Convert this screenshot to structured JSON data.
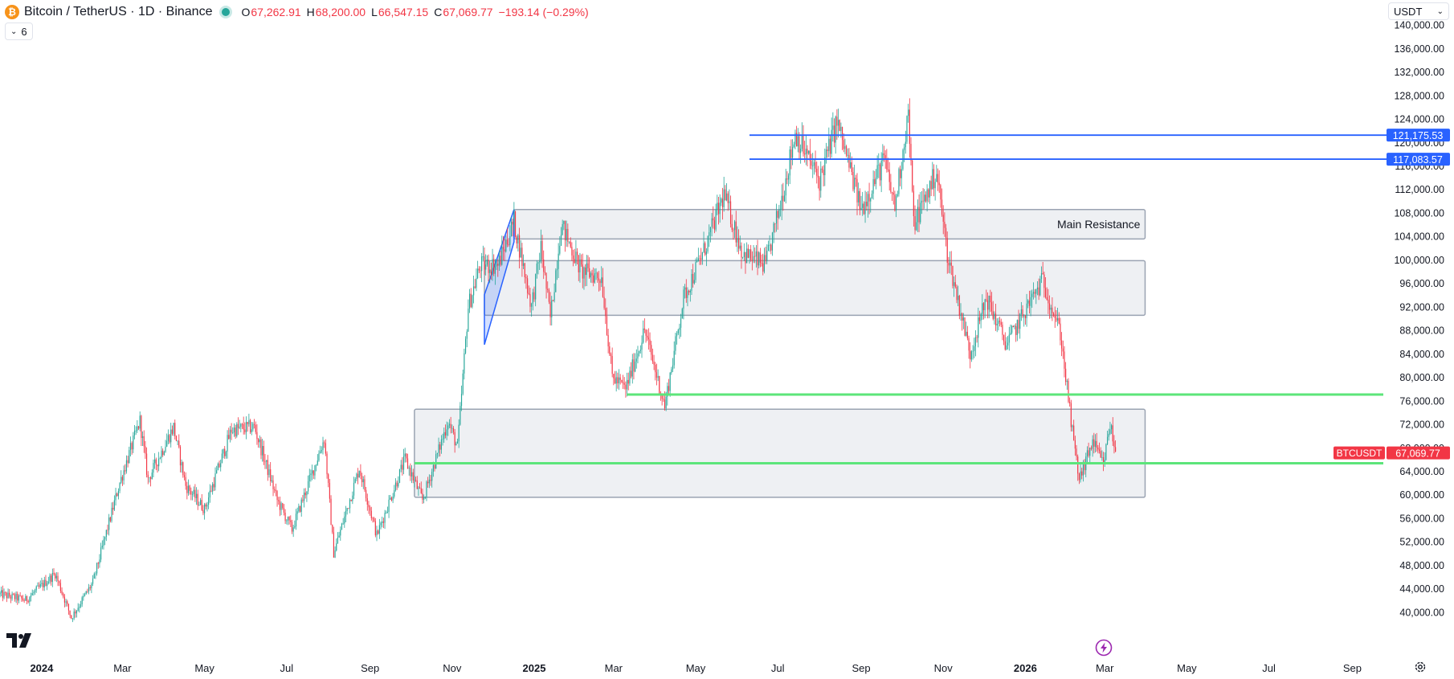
{
  "header": {
    "symbol_title": "Bitcoin / TetherUS · 1D · Binance",
    "ohlc": {
      "o": "67,262.91",
      "h": "68,200.00",
      "l": "66,547.15",
      "c": "67,069.77"
    },
    "change": "−193.14 (−0.29%)",
    "indicator_count": "6",
    "currency": "USDT"
  },
  "icons": {
    "coin": "bitcoin-icon",
    "market_status": "market-open-dot",
    "collapse": "chevron-down-icon",
    "logo": "tradingview-logo",
    "replay": "replay-lightning-icon",
    "settings": "gear-icon"
  },
  "colors": {
    "up": "#26a69a",
    "down": "#f23645",
    "hline": "#2962ff",
    "support": "#5ce57a",
    "zone_fill": "#eef0f3",
    "zone_stroke": "#9aa3b2"
  },
  "chart_data": {
    "type": "candlestick",
    "symbol": "BTCUSDT",
    "interval": "1D",
    "exchange": "Binance",
    "x_range": [
      "2023-12-01",
      "2026-09-30"
    ],
    "y_range": [
      38000,
      142000
    ],
    "y_ticks": [
      40000,
      44000,
      48000,
      52000,
      56000,
      60000,
      64000,
      68000,
      72000,
      76000,
      80000,
      84000,
      88000,
      92000,
      96000,
      100000,
      104000,
      108000,
      112000,
      116000,
      120000,
      124000,
      128000,
      132000,
      136000,
      140000
    ],
    "y_tick_labels": [
      "40,000.00",
      "44,000.00",
      "48,000.00",
      "52,000.00",
      "56,000.00",
      "60,000.00",
      "64,000.00",
      "68,000.00",
      "72,000.00",
      "76,000.00",
      "80,000.00",
      "84,000.00",
      "88,000.00",
      "92,000.00",
      "96,000.00",
      "100,000.00",
      "104,000.00",
      "108,000.00",
      "112,000.00",
      "116,000.00",
      "120,000.00",
      "124,000.00",
      "128,000.00",
      "132,000.00",
      "136,000.00",
      "140,000.00"
    ],
    "x_ticks": [
      {
        "date": "2024-01-01",
        "label": "2024",
        "bold": true
      },
      {
        "date": "2024-03-01",
        "label": "Mar"
      },
      {
        "date": "2024-05-01",
        "label": "May"
      },
      {
        "date": "2024-07-01",
        "label": "Jul"
      },
      {
        "date": "2024-09-01",
        "label": "Sep"
      },
      {
        "date": "2024-11-01",
        "label": "Nov"
      },
      {
        "date": "2025-01-01",
        "label": "2025",
        "bold": true
      },
      {
        "date": "2025-03-01",
        "label": "Mar"
      },
      {
        "date": "2025-05-01",
        "label": "May"
      },
      {
        "date": "2025-07-01",
        "label": "Jul"
      },
      {
        "date": "2025-09-01",
        "label": "Sep"
      },
      {
        "date": "2025-11-01",
        "label": "Nov"
      },
      {
        "date": "2026-01-01",
        "label": "2026",
        "bold": true
      },
      {
        "date": "2026-03-01",
        "label": "Mar"
      },
      {
        "date": "2026-05-01",
        "label": "May"
      },
      {
        "date": "2026-07-01",
        "label": "Jul"
      },
      {
        "date": "2026-09-01",
        "label": "Sep"
      }
    ],
    "price_path": [
      [
        "2023-12-01",
        43000
      ],
      [
        "2023-12-20",
        42000
      ],
      [
        "2024-01-11",
        46500
      ],
      [
        "2024-01-23",
        39000
      ],
      [
        "2024-02-08",
        45000
      ],
      [
        "2024-02-28",
        62000
      ],
      [
        "2024-03-14",
        72500
      ],
      [
        "2024-03-20",
        62500
      ],
      [
        "2024-04-08",
        71500
      ],
      [
        "2024-04-17",
        61500
      ],
      [
        "2024-05-01",
        57500
      ],
      [
        "2024-05-21",
        71000
      ],
      [
        "2024-06-07",
        71500
      ],
      [
        "2024-06-24",
        59000
      ],
      [
        "2024-07-05",
        54000
      ],
      [
        "2024-07-29",
        69500
      ],
      [
        "2024-08-05",
        50000
      ],
      [
        "2024-08-24",
        64500
      ],
      [
        "2024-09-06",
        53000
      ],
      [
        "2024-09-27",
        66000
      ],
      [
        "2024-10-10",
        59000
      ],
      [
        "2024-10-29",
        72500
      ],
      [
        "2024-11-05",
        68000
      ],
      [
        "2024-11-13",
        92000
      ],
      [
        "2024-11-22",
        99000
      ],
      [
        "2024-12-05",
        99000
      ],
      [
        "2024-12-17",
        106500
      ],
      [
        "2024-12-30",
        92000
      ],
      [
        "2025-01-06",
        102000
      ],
      [
        "2025-01-13",
        90000
      ],
      [
        "2025-01-21",
        106000
      ],
      [
        "2025-02-05",
        98000
      ],
      [
        "2025-02-20",
        97000
      ],
      [
        "2025-02-28",
        80000
      ],
      [
        "2025-03-10",
        78000
      ],
      [
        "2025-03-24",
        88000
      ],
      [
        "2025-04-08",
        75000
      ],
      [
        "2025-04-22",
        93500
      ],
      [
        "2025-05-08",
        102000
      ],
      [
        "2025-05-22",
        111000
      ],
      [
        "2025-06-05",
        101000
      ],
      [
        "2025-06-22",
        99000
      ],
      [
        "2025-07-03",
        109500
      ],
      [
        "2025-07-14",
        121500
      ],
      [
        "2025-08-01",
        113500
      ],
      [
        "2025-08-14",
        123500
      ],
      [
        "2025-09-01",
        108500
      ],
      [
        "2025-09-18",
        117000
      ],
      [
        "2025-09-26",
        109000
      ],
      [
        "2025-10-06",
        125000
      ],
      [
        "2025-10-10",
        106000
      ],
      [
        "2025-10-27",
        115000
      ],
      [
        "2025-11-04",
        101000
      ],
      [
        "2025-11-21",
        84000
      ],
      [
        "2025-12-03",
        93500
      ],
      [
        "2025-12-18",
        85500
      ],
      [
        "2026-01-05",
        93000
      ],
      [
        "2026-01-14",
        96500
      ],
      [
        "2026-01-27",
        87500
      ],
      [
        "2026-02-05",
        70500
      ],
      [
        "2026-02-10",
        62500
      ],
      [
        "2026-02-20",
        69000
      ],
      [
        "2026-02-28",
        65000
      ],
      [
        "2026-03-05",
        72000
      ],
      [
        "2026-03-09",
        67070
      ]
    ],
    "last_price": 67069.77,
    "last_price_label": "67,069.77",
    "symbol_tag": "BTCUSDT",
    "zones": [
      {
        "from": "2024-12-17",
        "to": "2026-03-31",
        "low": 103500,
        "high": 108500,
        "label": "Main Resistance"
      },
      {
        "from": "2024-11-25",
        "to": "2026-03-31",
        "low": 90500,
        "high": 99800,
        "label": ""
      },
      {
        "from": "2024-10-04",
        "to": "2026-03-31",
        "low": 59500,
        "high": 74500,
        "label": ""
      }
    ],
    "horizontal_lines": [
      {
        "from": "2025-06-10",
        "price": 121175.53,
        "label": "121,175.53",
        "color": "#2962ff"
      },
      {
        "from": "2025-06-10",
        "price": 117083.57,
        "label": "117,083.57",
        "color": "#2962ff"
      }
    ],
    "support_lines": [
      {
        "from": "2025-03-11",
        "price": 77000,
        "color": "#5ce57a"
      },
      {
        "from": "2024-10-04",
        "price": 65300,
        "color": "#5ce57a"
      }
    ],
    "channel": {
      "p1": [
        "2024-11-25",
        85500
      ],
      "p2": [
        "2024-12-17",
        103000
      ],
      "p3": [
        "2024-12-17",
        108500
      ],
      "p4": [
        "2024-11-25",
        94000
      ]
    }
  }
}
